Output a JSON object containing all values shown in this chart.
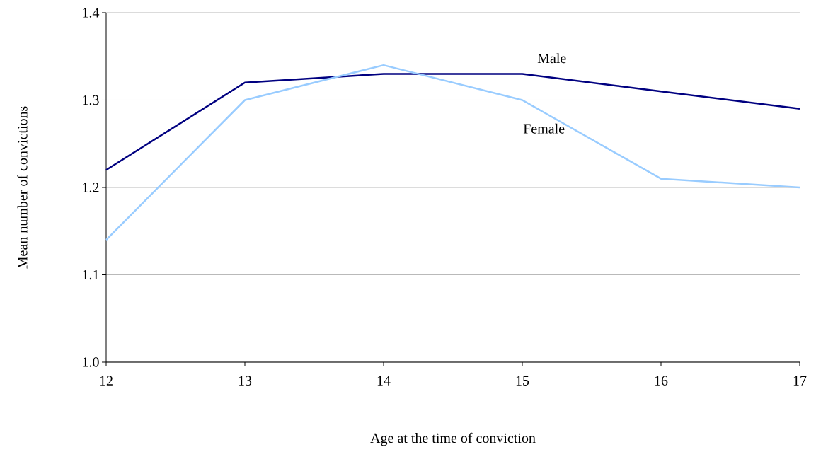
{
  "chart_data": {
    "type": "line",
    "xlabel": "Age at the time of conviction",
    "ylabel": "Mean number of convictions",
    "x": [
      12,
      13,
      14,
      15,
      16,
      17
    ],
    "series": [
      {
        "name": "Male",
        "color": "#000080",
        "values": [
          1.22,
          1.32,
          1.33,
          1.33,
          1.31,
          1.29
        ]
      },
      {
        "name": "Female",
        "color": "#99ccff",
        "values": [
          1.14,
          1.3,
          1.34,
          1.3,
          1.21,
          1.2
        ]
      }
    ],
    "xlim": [
      12,
      17
    ],
    "xticks": [
      12,
      13,
      14,
      15,
      16,
      17
    ],
    "ylim": [
      1.0,
      1.4
    ],
    "yticks": [
      {
        "value": 1.0,
        "label": "1.0"
      },
      {
        "value": 1.1,
        "label": "1.1"
      },
      {
        "value": 1.2,
        "label": "1.2"
      },
      {
        "value": 1.3,
        "label": "1.3"
      },
      {
        "value": 1.4,
        "label": "1.4"
      }
    ],
    "grid": "y",
    "legend": false,
    "marker": "none",
    "line_style": "solid"
  }
}
